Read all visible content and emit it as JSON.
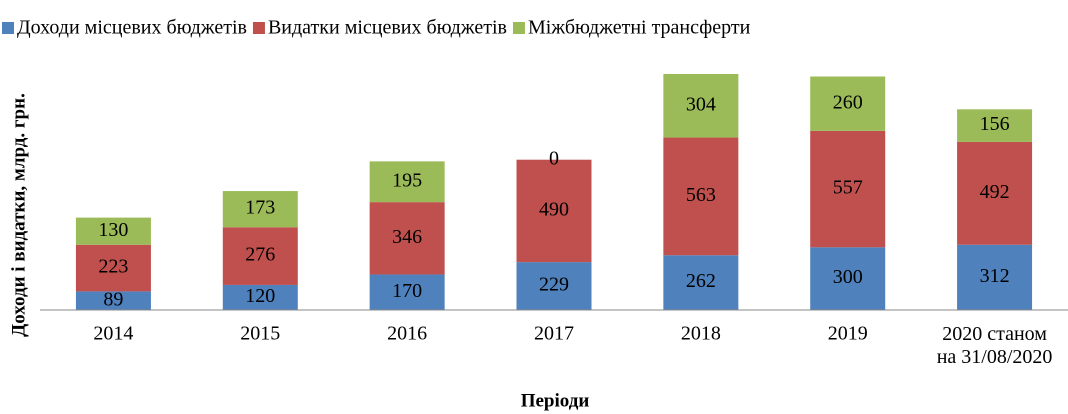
{
  "chart_data": {
    "type": "stacked_bar",
    "categories": [
      "2014",
      "2015",
      "2016",
      "2017",
      "2018",
      "2019",
      "2020 станом\nна 31/08/2020"
    ],
    "series": [
      {
        "name": "Доходи місцевих бюджетів",
        "color": "#4f81bd",
        "values": [
          89,
          120,
          170,
          229,
          262,
          300,
          312
        ]
      },
      {
        "name": "Видатки місцевих бюджетів",
        "color": "#c0504d",
        "values": [
          223,
          276,
          346,
          490,
          563,
          557,
          492
        ]
      },
      {
        "name": "Міжбюджетні трансферти",
        "color": "#9bbb59",
        "values": [
          130,
          173,
          195,
          0,
          304,
          260,
          156
        ]
      }
    ],
    "x_label": "Періоди",
    "y_label": "Доходи і видатки, млрд. грн.",
    "legend": "top"
  }
}
